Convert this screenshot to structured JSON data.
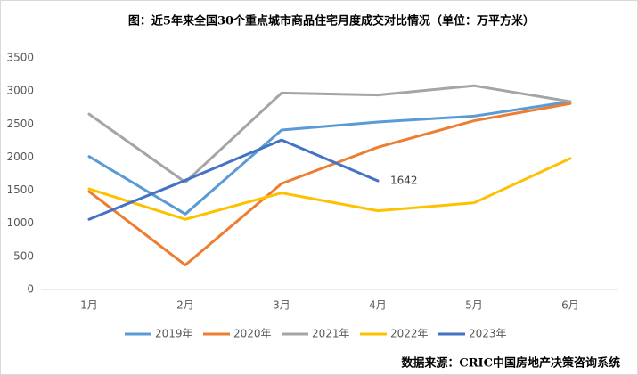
{
  "chart_data": {
    "type": "line",
    "title": "图：近5年来全国30个重点城市商品住宅月度成交对比情况（单位：万平方米）",
    "source": "数据来源：CRIC中国房地产决策咨询系统",
    "categories": [
      "1月",
      "2月",
      "3月",
      "4月",
      "5月",
      "6月"
    ],
    "series": [
      {
        "name": "2019年",
        "color": "#5b9bd5",
        "values": [
          2010,
          1140,
          2410,
          2530,
          2620,
          2840
        ]
      },
      {
        "name": "2020年",
        "color": "#ed7d31",
        "values": [
          1480,
          370,
          1600,
          2150,
          2550,
          2810
        ]
      },
      {
        "name": "2021年",
        "color": "#a5a5a5",
        "values": [
          2650,
          1620,
          2970,
          2940,
          3080,
          2840
        ]
      },
      {
        "name": "2022年",
        "color": "#ffc000",
        "values": [
          1520,
          1060,
          1460,
          1190,
          1310,
          1980
        ]
      },
      {
        "name": "2023年",
        "color": "#4472c4",
        "values": [
          1060,
          1650,
          2260,
          1642,
          null,
          null
        ]
      }
    ],
    "ylim": [
      0,
      3500
    ],
    "yticks": [
      0,
      500,
      1000,
      1500,
      2000,
      2500,
      3000,
      3500
    ],
    "grid": false
  }
}
